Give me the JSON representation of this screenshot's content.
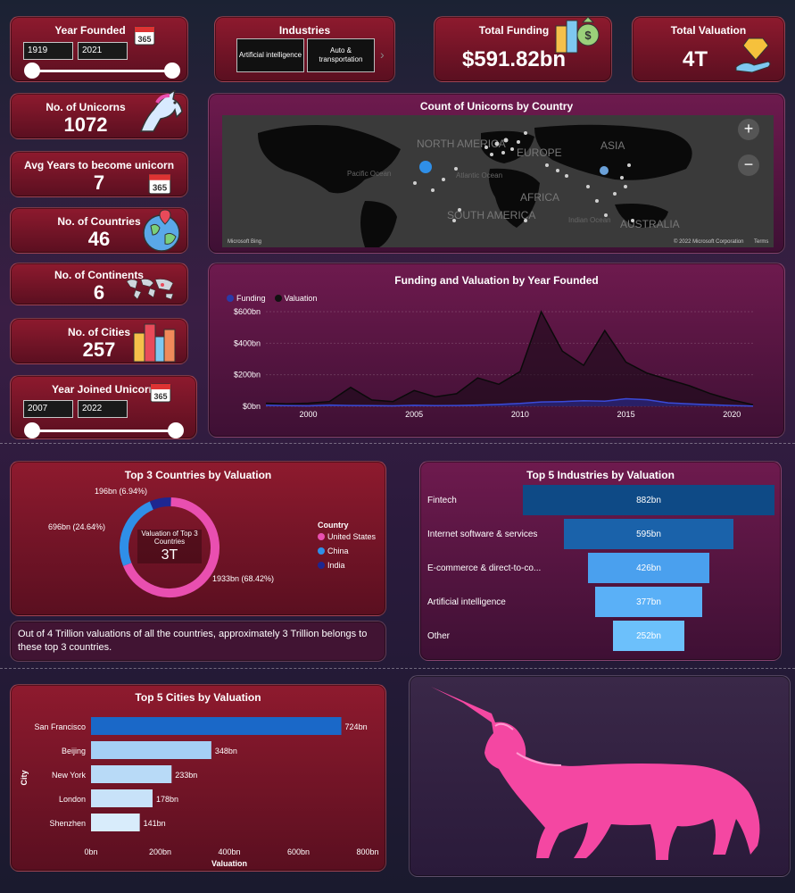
{
  "year_founded": {
    "title": "Year Founded",
    "from": "1919",
    "to": "2021",
    "icon": "calendar-365-icon",
    "icon_text": "365"
  },
  "industries": {
    "title": "Industries",
    "items": [
      "Artificial intelligence",
      "Auto & transportation"
    ]
  },
  "total_funding": {
    "title": "Total Funding",
    "value": "$591.82bn"
  },
  "total_valuation": {
    "title": "Total Valuation",
    "value": "4T"
  },
  "kpis": {
    "unicorns": {
      "title": "No. of Unicorns",
      "value": "1072"
    },
    "avg_years": {
      "title": "Avg Years to become unicorn",
      "value": "7",
      "icon_text": "365"
    },
    "countries": {
      "title": "No. of Countries",
      "value": "46"
    },
    "continents": {
      "title": "No. of Continents",
      "value": "6"
    },
    "cities": {
      "title": "No. of Cities",
      "value": "257"
    }
  },
  "year_joined": {
    "title": "Year Joined Unicorn",
    "from": "2007",
    "to": "2022",
    "icon_text": "365"
  },
  "map": {
    "title": "Count of Unicorns by Country",
    "labels": [
      "NORTH AMERICA",
      "EUROPE",
      "ASIA",
      "AFRICA",
      "SOUTH AMERICA",
      "AUSTRALIA",
      "Pacific Ocean",
      "Atlantic Ocean",
      "Indian Ocean"
    ],
    "brand": "Microsoft Bing",
    "copyright": "© 2022 Microsoft Corporation",
    "terms": "Terms"
  },
  "top_countries_note": "Out of 4 Trillion valuations of all the countries, approximately 3 Trillion belongs to these top 3 countries.",
  "chart_data": [
    {
      "type": "area",
      "title": "Funding and Valuation by Year Founded",
      "legend": "top-left",
      "series": [
        {
          "name": "Funding",
          "color": "#2a3aa8",
          "values": [
            6,
            4,
            3,
            8,
            5,
            4,
            3,
            6,
            4,
            5,
            8,
            12,
            18,
            28,
            30,
            35,
            32,
            48,
            42,
            22,
            15,
            10,
            5,
            1
          ]
        },
        {
          "name": "Valuation",
          "color": "#111111",
          "values": [
            20,
            15,
            20,
            30,
            120,
            40,
            30,
            100,
            60,
            80,
            180,
            140,
            220,
            600,
            350,
            260,
            480,
            280,
            210,
            170,
            130,
            80,
            40,
            10
          ]
        }
      ],
      "x": [
        1998,
        1999,
        2000,
        2001,
        2002,
        2003,
        2004,
        2005,
        2006,
        2007,
        2008,
        2009,
        2010,
        2011,
        2012,
        2013,
        2014,
        2015,
        2016,
        2017,
        2018,
        2019,
        2020,
        2021
      ],
      "xticks": [
        "2000",
        "2005",
        "2010",
        "2015",
        "2020"
      ],
      "yticks": [
        "$0bn",
        "$200bn",
        "$400bn",
        "$600bn"
      ],
      "ylim": [
        0,
        600
      ]
    },
    {
      "type": "pie",
      "title": "Top 3 Countries by Valuation",
      "center_label": "Valuation of Top 3 Countries",
      "center_value": "3T",
      "legend_title": "Country",
      "slices": [
        {
          "name": "United States",
          "value": 1933,
          "label": "1933bn (68.42%)",
          "color": "#e94fb0"
        },
        {
          "name": "China",
          "value": 696,
          "label": "696bn (24.64%)",
          "color": "#2f8fe8"
        },
        {
          "name": "India",
          "value": 196,
          "label": "196bn (6.94%)",
          "color": "#1e2690"
        }
      ]
    },
    {
      "type": "bar",
      "title": "Top 5 Industries by Valuation",
      "categories": [
        "Fintech",
        "Internet software & services",
        "E-commerce & direct-to-co...",
        "Artificial intelligence",
        "Other"
      ],
      "values": [
        882,
        595,
        426,
        377,
        252
      ],
      "value_labels": [
        "882bn",
        "595bn",
        "426bn",
        "377bn",
        "252bn"
      ],
      "colors": [
        "#0e4a86",
        "#1a62aa",
        "#4aa0ee",
        "#5ab0f7",
        "#6cc0fb"
      ]
    },
    {
      "type": "bar",
      "title": "Top 5 Cities by Valuation",
      "categories": [
        "San Francisco",
        "Beijing",
        "New York",
        "London",
        "Shenzhen"
      ],
      "values": [
        724,
        348,
        233,
        178,
        141
      ],
      "value_labels": [
        "724bn",
        "348bn",
        "233bn",
        "178bn",
        "141bn"
      ],
      "colors": [
        "#1a68c8",
        "#a5d0f5",
        "#b8daf7",
        "#c8e2f9",
        "#d8ecfb"
      ],
      "xticks": [
        "0bn",
        "200bn",
        "400bn",
        "600bn",
        "800bn"
      ],
      "xlim": [
        0,
        800
      ],
      "xlabel": "Valuation",
      "ylabel": "City"
    }
  ]
}
